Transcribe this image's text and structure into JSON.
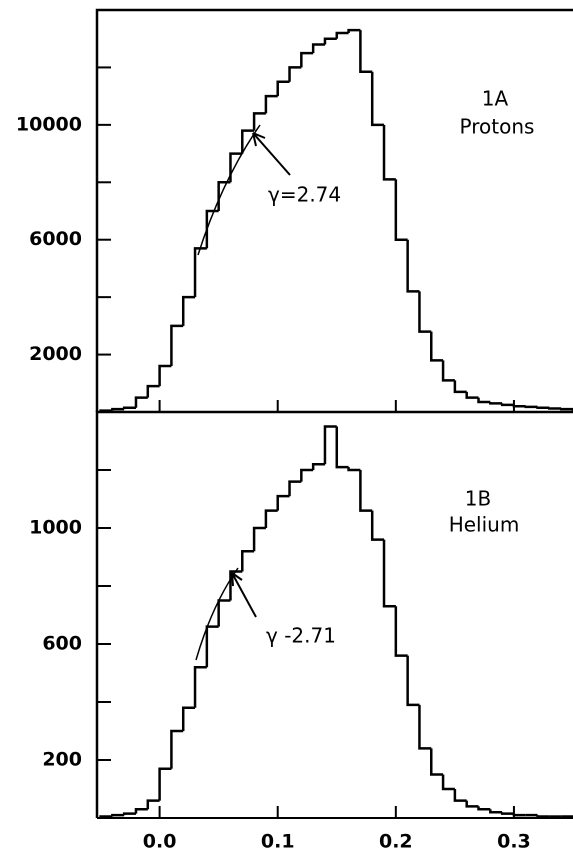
{
  "chart_data": [
    {
      "type": "histogram",
      "bins": [
        -0.05,
        -0.04,
        -0.03,
        -0.02,
        -0.01,
        0,
        0.01,
        0.02,
        0.03,
        0.04,
        0.05,
        0.06,
        0.07,
        0.08,
        0.09,
        0.1,
        0.11,
        0.12,
        0.13,
        0.14,
        0.15,
        0.16,
        0.17,
        0.18,
        0.19,
        0.2,
        0.21,
        0.22,
        0.23,
        0.24,
        0.25,
        0.26,
        0.27,
        0.28,
        0.29,
        0.3,
        0.31,
        0.32,
        0.33,
        0.34,
        0.35
      ],
      "values": [
        50,
        100,
        150,
        500,
        900,
        1600,
        3000,
        4000,
        5700,
        7000,
        8000,
        9000,
        9800,
        10400,
        11000,
        11500,
        12000,
        12500,
        12800,
        13000,
        13200,
        13300,
        11850,
        10000,
        8100,
        6000,
        4200,
        2800,
        1800,
        1100,
        700,
        500,
        350,
        300,
        250,
        200,
        180,
        150,
        120,
        100
      ],
      "ylim": [
        0,
        14000
      ],
      "yticks": [
        2000,
        6000,
        10000
      ],
      "yminorticks": [
        4000,
        8000,
        12000
      ],
      "annotations": [
        "1A",
        "Protons",
        "γ=2.74"
      ]
    },
    {
      "type": "histogram",
      "bins": [
        -0.05,
        -0.04,
        -0.03,
        -0.02,
        -0.01,
        0,
        0.01,
        0.02,
        0.03,
        0.04,
        0.05,
        0.06,
        0.07,
        0.08,
        0.09,
        0.1,
        0.11,
        0.12,
        0.13,
        0.14,
        0.15,
        0.16,
        0.17,
        0.18,
        0.19,
        0.2,
        0.21,
        0.22,
        0.23,
        0.24,
        0.25,
        0.26,
        0.27,
        0.28,
        0.29,
        0.3,
        0.31,
        0.32,
        0.33,
        0.34,
        0.35
      ],
      "values": [
        5,
        10,
        15,
        30,
        60,
        170,
        300,
        380,
        520,
        660,
        750,
        850,
        920,
        1000,
        1060,
        1110,
        1160,
        1200,
        1220,
        1350,
        1210,
        1200,
        1060,
        960,
        730,
        560,
        390,
        240,
        150,
        100,
        60,
        40,
        30,
        20,
        15,
        10,
        10,
        5,
        5,
        5
      ],
      "ylim": [
        0,
        1400
      ],
      "yticks": [
        200,
        600,
        1000
      ],
      "yminorticks": [
        400,
        800,
        1200
      ],
      "xlim": [
        -0.053,
        0.35
      ],
      "xticks": [
        {
          "value": 0,
          "label": "0.0"
        },
        0.1,
        0.2,
        0.3
      ],
      "annotations": [
        "1B",
        "Helium",
        "γ -2.71"
      ]
    }
  ]
}
